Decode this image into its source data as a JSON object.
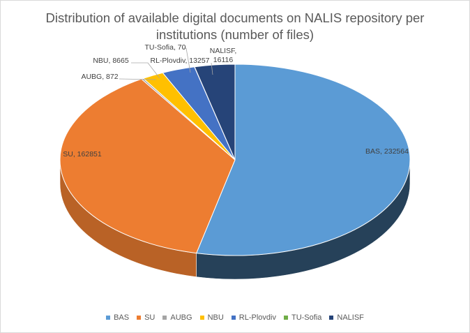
{
  "chart_data": {
    "type": "pie",
    "style": "3d",
    "title_lines": [
      "Distribution of available digital documents on NALIS repository per",
      "institutions (number of files)"
    ],
    "categories": [
      "BAS",
      "SU",
      "AUBG",
      "NBU",
      "RL-Plovdiv",
      "TU-Sofia",
      "NALISF"
    ],
    "values": [
      232564,
      162851,
      872,
      8665,
      13257,
      70,
      16116
    ],
    "data_labels": [
      "BAS, 232564",
      "SU, 162851",
      "AUBG, 872",
      "NBU, 8665",
      "RL-Plovdiv, 13257",
      "TU-Sofia, 70",
      "NALISF,\n16116"
    ],
    "colors": [
      "#5b9bd5",
      "#ed7d31",
      "#a5a5a5",
      "#ffc000",
      "#4472c4",
      "#70ad47",
      "#264478"
    ],
    "legend_position": "bottom"
  }
}
